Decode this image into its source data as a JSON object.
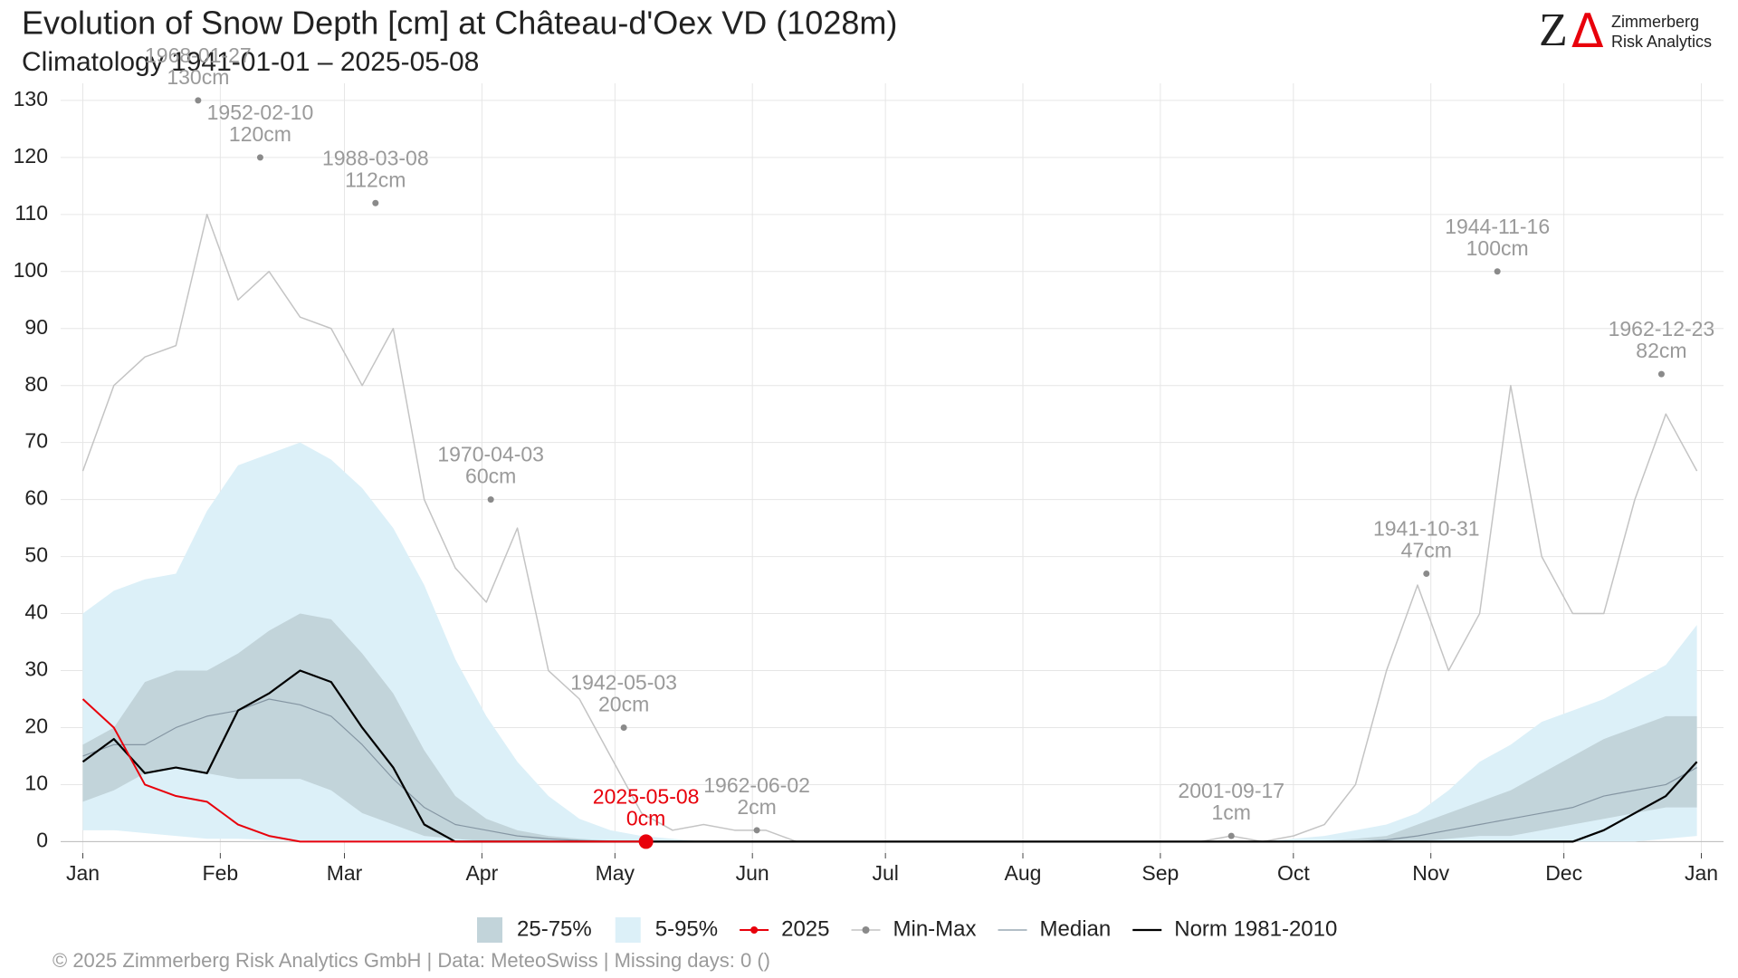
{
  "chart_data": {
    "type": "line",
    "title": "Evolution of Snow Depth [cm] at Château-d'Oex  VD (1028m)",
    "subtitle": "Climatology 1941-01-01 – 2025-05-08",
    "source": "©  2025 Zimmerberg Risk Analytics GmbH | Data: MeteoSwiss | Missing days: 0 ()",
    "logo": {
      "symbol_z": "Z",
      "symbol_delta": "Δ",
      "line1": "Zimmerberg",
      "line2": "Risk Analytics"
    },
    "x": [
      1,
      8,
      15,
      22,
      29,
      36,
      43,
      50,
      57,
      64,
      71,
      78,
      85,
      92,
      99,
      106,
      113,
      120,
      127,
      134,
      141,
      148,
      155,
      162,
      169,
      176,
      183,
      190,
      197,
      204,
      211,
      218,
      225,
      232,
      239,
      246,
      253,
      260,
      267,
      274,
      281,
      288,
      295,
      302,
      309,
      316,
      323,
      330,
      337,
      344,
      351,
      358,
      365
    ],
    "xlim": [
      -4,
      371
    ],
    "xticks": [
      {
        "value": 1,
        "label": "Jan"
      },
      {
        "value": 32,
        "label": "Feb"
      },
      {
        "value": 60,
        "label": "Mar"
      },
      {
        "value": 91,
        "label": "Apr"
      },
      {
        "value": 121,
        "label": "May"
      },
      {
        "value": 152,
        "label": "Jun"
      },
      {
        "value": 182,
        "label": "Jul"
      },
      {
        "value": 213,
        "label": "Aug"
      },
      {
        "value": 244,
        "label": "Sep"
      },
      {
        "value": 274,
        "label": "Oct"
      },
      {
        "value": 305,
        "label": "Nov"
      },
      {
        "value": 335,
        "label": "Dec"
      },
      {
        "value": 366,
        "label": "Jan"
      }
    ],
    "ylim": [
      -2,
      133
    ],
    "yticks": [
      0,
      10,
      20,
      30,
      40,
      50,
      60,
      70,
      80,
      90,
      100,
      110,
      120,
      130
    ],
    "grid": true,
    "legend": "bottom",
    "series": [
      {
        "name": "25-75%",
        "kind": "band",
        "color": "#c2d4da",
        "low": [
          7,
          9,
          12,
          13,
          12,
          11,
          11,
          11,
          9,
          5,
          3,
          1,
          0.5,
          0,
          0,
          0,
          0,
          0,
          0,
          0,
          0,
          0,
          0,
          0,
          0,
          0,
          0,
          0,
          0,
          0,
          0,
          0,
          0,
          0,
          0,
          0,
          0,
          0,
          0,
          0,
          0,
          0,
          0,
          0,
          0.5,
          1,
          1,
          2,
          3,
          4,
          5,
          6,
          6
        ],
        "high": [
          17,
          20,
          28,
          30,
          30,
          33,
          37,
          40,
          39,
          33,
          26,
          16,
          8,
          4,
          2,
          1,
          0.5,
          0.2,
          0,
          0,
          0,
          0,
          0,
          0,
          0,
          0,
          0,
          0,
          0,
          0,
          0,
          0,
          0,
          0,
          0,
          0,
          0,
          0,
          0,
          0,
          0.2,
          0.5,
          1,
          3,
          5,
          7,
          9,
          12,
          15,
          18,
          20,
          22,
          22
        ]
      },
      {
        "name": "5-95%",
        "kind": "band",
        "color": "#dcf0f8",
        "low": [
          2,
          2,
          1.5,
          1,
          0.5,
          0.5,
          0.3,
          0.2,
          0,
          0,
          0,
          0,
          0,
          0,
          0,
          0,
          0,
          0,
          0,
          0,
          0,
          0,
          0,
          0,
          0,
          0,
          0,
          0,
          0,
          0,
          0,
          0,
          0,
          0,
          0,
          0,
          0,
          0,
          0,
          0,
          0,
          0,
          0,
          0,
          0,
          0,
          0,
          0,
          0,
          0,
          0,
          0.5,
          1
        ],
        "high": [
          40,
          44,
          46,
          47,
          58,
          66,
          68,
          70,
          67,
          62,
          55,
          45,
          32,
          22,
          14,
          8,
          4,
          2,
          1,
          0.5,
          0,
          0,
          0,
          0,
          0,
          0,
          0,
          0,
          0,
          0,
          0,
          0,
          0,
          0,
          0,
          0,
          0,
          0,
          0,
          0.5,
          1,
          2,
          3,
          5,
          9,
          14,
          17,
          21,
          23,
          25,
          28,
          31,
          38
        ]
      },
      {
        "name": "2025",
        "kind": "line",
        "marker": true,
        "color": "#e8000b",
        "width": 2,
        "values": [
          25,
          20,
          10,
          8,
          7,
          3,
          1,
          0,
          0,
          0,
          0,
          0,
          0,
          0,
          0,
          0,
          0,
          0,
          0,
          null,
          null,
          null,
          null,
          null,
          null,
          null,
          null,
          null,
          null,
          null,
          null,
          null,
          null,
          null,
          null,
          null,
          null,
          null,
          null,
          null,
          null,
          null,
          null,
          null,
          null,
          null,
          null,
          null,
          null,
          null,
          null,
          null,
          null
        ]
      },
      {
        "name": "Min-Max",
        "kind": "line",
        "marker": true,
        "color": "#c4c4c4",
        "width": 1.5,
        "values": [
          65,
          80,
          85,
          87,
          110,
          95,
          100,
          92,
          90,
          80,
          90,
          60,
          48,
          42,
          55,
          30,
          25,
          15,
          5,
          2,
          3,
          2,
          2,
          0,
          0,
          0,
          0,
          0,
          0,
          0,
          0,
          0,
          0,
          0,
          0,
          0,
          0,
          1,
          0,
          1,
          3,
          10,
          30,
          45,
          30,
          40,
          80,
          50,
          40,
          40,
          60,
          75,
          65
        ]
      },
      {
        "name": "Median",
        "kind": "line",
        "color": "#8596a3",
        "width": 1.2,
        "values": [
          15,
          17,
          17,
          20,
          22,
          23,
          25,
          24,
          22,
          17,
          11,
          6,
          3,
          2,
          1,
          0.5,
          0.2,
          0,
          0,
          0,
          0,
          0,
          0,
          0,
          0,
          0,
          0,
          0,
          0,
          0,
          0,
          0,
          0,
          0,
          0,
          0,
          0,
          0,
          0,
          0,
          0,
          0,
          0.3,
          1,
          2,
          3,
          4,
          5,
          6,
          8,
          9,
          10,
          13
        ]
      },
      {
        "name": "Norm 1981-2010",
        "kind": "line",
        "color": "#000000",
        "width": 2.2,
        "values": [
          14,
          18,
          12,
          13,
          12,
          23,
          26,
          30,
          28,
          20,
          13,
          3,
          0,
          0,
          0,
          0,
          0,
          0,
          0,
          0,
          0,
          0,
          0,
          0,
          0,
          0,
          0,
          0,
          0,
          0,
          0,
          0,
          0,
          0,
          0,
          0,
          0,
          0,
          0,
          0,
          0,
          0,
          0,
          0,
          0,
          0,
          0,
          0,
          0,
          2,
          5,
          8,
          14
        ]
      }
    ],
    "annotations": [
      {
        "date": "1968-01-27",
        "text": "130cm",
        "x": 27,
        "y": 130,
        "color": "#9a9a9a"
      },
      {
        "date": "1952-02-10",
        "text": "120cm",
        "x": 41,
        "y": 120,
        "color": "#9a9a9a"
      },
      {
        "date": "1988-03-08",
        "text": "112cm",
        "x": 67,
        "y": 112,
        "color": "#9a9a9a"
      },
      {
        "date": "1970-04-03",
        "text": "60cm",
        "x": 93,
        "y": 60,
        "color": "#9a9a9a"
      },
      {
        "date": "1942-05-03",
        "text": "20cm",
        "x": 123,
        "y": 20,
        "color": "#9a9a9a"
      },
      {
        "date": "1962-06-02",
        "text": "2cm",
        "x": 153,
        "y": 2,
        "color": "#9a9a9a"
      },
      {
        "date": "2001-09-17",
        "text": "1cm",
        "x": 260,
        "y": 1,
        "color": "#9a9a9a"
      },
      {
        "date": "1941-10-31",
        "text": "47cm",
        "x": 304,
        "y": 47,
        "color": "#9a9a9a"
      },
      {
        "date": "1944-11-16",
        "text": "100cm",
        "x": 320,
        "y": 100,
        "color": "#9a9a9a"
      },
      {
        "date": "1962-12-23",
        "text": "82cm",
        "x": 357,
        "y": 82,
        "color": "#9a9a9a"
      },
      {
        "date": "2025-05-08",
        "text": "0cm",
        "x": 128,
        "y": 0,
        "color": "#e8000b",
        "big": true
      }
    ]
  }
}
